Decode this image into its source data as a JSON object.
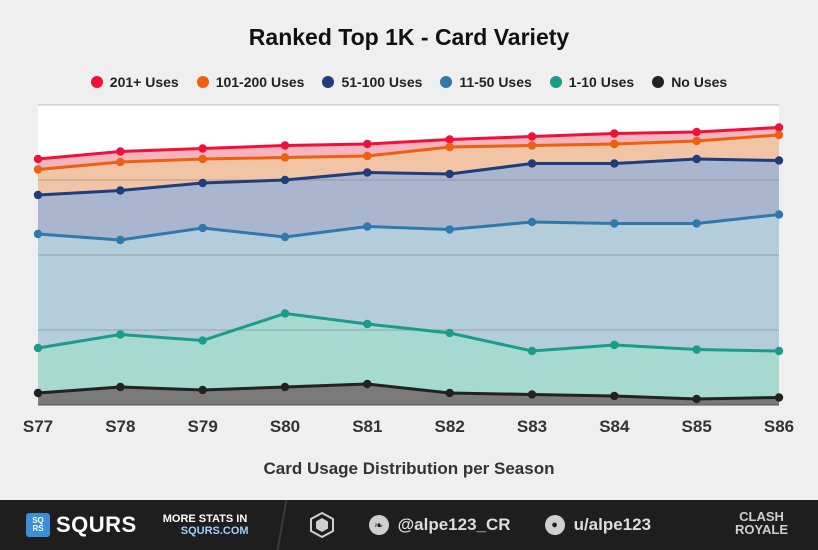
{
  "chart_data": {
    "type": "area",
    "title": "Ranked Top 1K - Card Variety",
    "xlabel": "Card Usage Distribution per Season",
    "ylabel": "",
    "categories": [
      "S77",
      "S78",
      "S79",
      "S80",
      "S81",
      "S82",
      "S83",
      "S84",
      "S85",
      "S86"
    ],
    "ylim": [
      0,
      100
    ],
    "grid": true,
    "stacked": true,
    "legend_position": "top",
    "series": [
      {
        "name": "No Uses",
        "color": "#222222",
        "fill": "#7a7a7a",
        "values": [
          4,
          6,
          5,
          6,
          7,
          4,
          3.5,
          3,
          2,
          2.5
        ]
      },
      {
        "name": "1-10 Uses",
        "color": "#1a9c88",
        "fill": "#a6d9d0",
        "values": [
          19,
          23.5,
          21.5,
          30.5,
          27,
          24,
          18,
          20,
          18.5,
          18
        ]
      },
      {
        "name": "11-50 Uses",
        "color": "#2f7aad",
        "fill": "#b4cddb",
        "values": [
          57,
          55,
          59,
          56,
          59.5,
          58.5,
          61,
          60.5,
          60.5,
          63.5
        ]
      },
      {
        "name": "51-100 Uses",
        "color": "#1f3d7c",
        "fill": "#aab6cd",
        "values": [
          70,
          71.5,
          74,
          75,
          77.5,
          77,
          80.5,
          80.5,
          82,
          81.5
        ]
      },
      {
        "name": "101-200 Uses",
        "color": "#ee5f10",
        "fill": "#f1c4a6",
        "values": [
          78.5,
          81,
          82,
          82.5,
          83,
          86,
          86.5,
          87,
          88,
          90
        ]
      },
      {
        "name": "201+ Uses",
        "color": "#f0103a",
        "fill": "#f5b4be",
        "values": [
          82,
          84.5,
          85.5,
          86.5,
          87,
          88.5,
          89.5,
          90.5,
          91,
          92.5
        ]
      }
    ]
  },
  "legend_order": [
    "201+ Uses",
    "101-200 Uses",
    "51-100 Uses",
    "11-50 Uses",
    "1-10 Uses",
    "No Uses"
  ],
  "footer": {
    "logo_badge": "SQ RS",
    "logo_text": "SQURS",
    "more_line1": "MORE STATS IN",
    "more_line2": "SQURS.COM",
    "twitter": "@alpe123_CR",
    "reddit": "u/alpe123",
    "game_line1": "CLASH",
    "game_line2": "ROYALE"
  }
}
